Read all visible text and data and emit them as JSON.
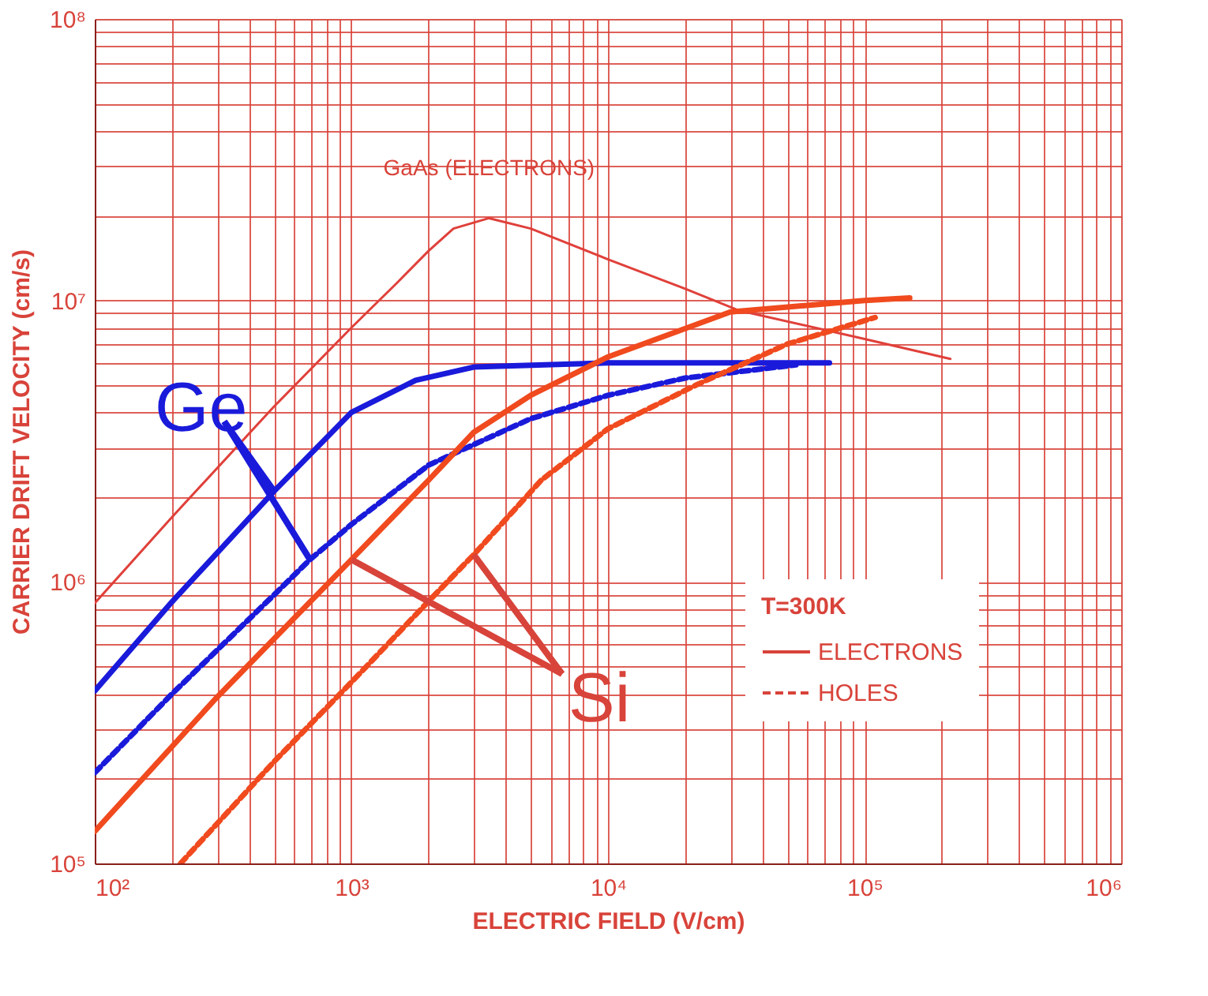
{
  "chart_data": {
    "type": "line",
    "xlabel": "ELECTRIC FIELD (V/cm)",
    "ylabel": "CARRIER DRIFT VELOCITY (cm/s)",
    "legend_title": "T=300K",
    "log": "xy",
    "grid": true,
    "xlim": [
      100,
      1000000
    ],
    "ylim": [
      100000,
      100000000
    ],
    "xticks": [
      {
        "value": 100,
        "label": "10²"
      },
      {
        "value": 200,
        "label": null
      },
      {
        "value": 300,
        "label": null
      },
      {
        "value": 400,
        "label": null
      },
      {
        "value": 500,
        "label": null
      },
      {
        "value": 600,
        "label": null
      },
      {
        "value": 700,
        "label": null
      },
      {
        "value": 800,
        "label": null
      },
      {
        "value": 900,
        "label": null
      },
      {
        "value": 1000,
        "label": "10³"
      },
      {
        "value": 2000,
        "label": null
      },
      {
        "value": 3000,
        "label": null
      },
      {
        "value": 4000,
        "label": null
      },
      {
        "value": 5000,
        "label": null
      },
      {
        "value": 6000,
        "label": null
      },
      {
        "value": 7000,
        "label": null
      },
      {
        "value": 8000,
        "label": null
      },
      {
        "value": 9000,
        "label": null
      },
      {
        "value": 10000,
        "label": "10⁴"
      },
      {
        "value": 20000,
        "label": null
      },
      {
        "value": 30000,
        "label": null
      },
      {
        "value": 40000,
        "label": null
      },
      {
        "value": 50000,
        "label": null
      },
      {
        "value": 60000,
        "label": null
      },
      {
        "value": 70000,
        "label": null
      },
      {
        "value": 80000,
        "label": null
      },
      {
        "value": 90000,
        "label": null
      },
      {
        "value": 100000,
        "label": "10⁵"
      },
      {
        "value": 200000,
        "label": null
      },
      {
        "value": 300000,
        "label": null
      },
      {
        "value": 400000,
        "label": null
      },
      {
        "value": 500000,
        "label": null
      },
      {
        "value": 600000,
        "label": null
      },
      {
        "value": 700000,
        "label": null
      },
      {
        "value": 800000,
        "label": null
      },
      {
        "value": 900000,
        "label": null
      },
      {
        "value": 1000000,
        "label": "10⁶"
      }
    ],
    "yticks": [
      {
        "value": 100000,
        "label": "10⁵"
      },
      {
        "value": 200000,
        "label": null
      },
      {
        "value": 300000,
        "label": null
      },
      {
        "value": 400000,
        "label": null
      },
      {
        "value": 500000,
        "label": null
      },
      {
        "value": 600000,
        "label": null
      },
      {
        "value": 700000,
        "label": null
      },
      {
        "value": 800000,
        "label": null
      },
      {
        "value": 900000,
        "label": null
      },
      {
        "value": 1000000,
        "label": "10⁶"
      },
      {
        "value": 2000000,
        "label": null
      },
      {
        "value": 3000000,
        "label": null
      },
      {
        "value": 4000000,
        "label": null
      },
      {
        "value": 5000000,
        "label": null
      },
      {
        "value": 6000000,
        "label": null
      },
      {
        "value": 7000000,
        "label": null
      },
      {
        "value": 8000000,
        "label": null
      },
      {
        "value": 9000000,
        "label": null
      },
      {
        "value": 10000000,
        "label": "10⁷"
      },
      {
        "value": 20000000,
        "label": null
      },
      {
        "value": 30000000,
        "label": null
      },
      {
        "value": 40000000,
        "label": null
      },
      {
        "value": 50000000,
        "label": null
      },
      {
        "value": 60000000,
        "label": null
      },
      {
        "value": 70000000,
        "label": null
      },
      {
        "value": 80000000,
        "label": null
      },
      {
        "value": 90000000,
        "label": null
      },
      {
        "value": 100000000,
        "label": "10⁸"
      }
    ],
    "series": [
      {
        "color": "#e0403a",
        "line_style": "solid",
        "x": [
          100,
          200,
          500,
          1000,
          1500,
          2000,
          2500,
          3440,
          5000,
          10000,
          20000,
          32500,
          100000,
          216000
        ],
        "values": [
          840000,
          1700000,
          4200000,
          8000000,
          11500000,
          15000000,
          18000000,
          19600000,
          18000000,
          14000000,
          11000000,
          9200000,
          7300000,
          6200000
        ]
      },
      {
        "color": "#1a1adb",
        "line_style": "solid",
        "x": [
          100,
          200,
          500,
          1000,
          1780,
          3000,
          10000,
          73000
        ],
        "values": [
          410000,
          850000,
          2100000,
          4000000,
          5200000,
          5800000,
          6000000,
          6000000
        ]
      },
      {
        "color": "#1a1adb",
        "line_style": "dashed",
        "x": [
          100,
          200,
          500,
          690,
          1000,
          2000,
          5000,
          10000,
          20000,
          54000
        ],
        "values": [
          210000,
          400000,
          900000,
          1200000,
          1600000,
          2600000,
          3800000,
          4600000,
          5300000,
          5900000
        ]
      },
      {
        "color": "#f04a1e",
        "line_style": "solid",
        "x": [
          100,
          300,
          1000,
          2000,
          3000,
          5000,
          10000,
          30000,
          100000,
          150000
        ],
        "values": [
          130000,
          390000,
          1200000,
          2300000,
          3400000,
          4600000,
          6300000,
          9100000,
          10000000,
          10200000
        ]
      },
      {
        "color": "#f04a1e",
        "line_style": "dashed",
        "x": [
          216,
          500,
          1000,
          2040,
          3000,
          5500,
          10000,
          22000,
          50000,
          110000
        ],
        "values": [
          100000,
          230000,
          440000,
          870000,
          1250000,
          2300000,
          3500000,
          5000000,
          7000000,
          8700000
        ]
      }
    ],
    "annotations": [
      {
        "text": "GaAs (ELECTRONS)",
        "x": 3440,
        "y": 19600000
      },
      {
        "text": "Ge",
        "x": 500,
        "y": 2100000
      },
      {
        "text": "Si",
        "x": 1000,
        "y": 1200000
      },
      "ELECTRONS",
      "HOLES"
    ]
  }
}
